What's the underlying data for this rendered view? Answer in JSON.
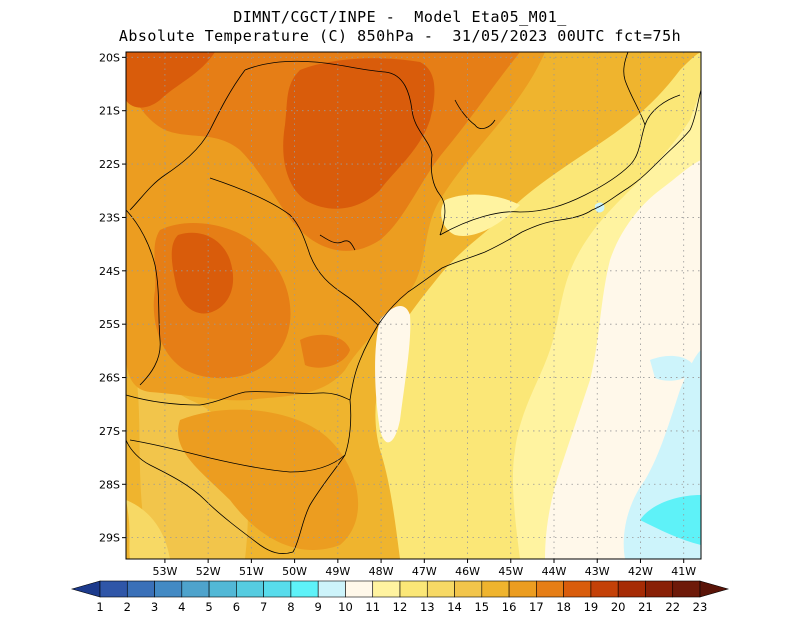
{
  "header": {
    "line1": "DIMNT/CGCT/INPE -  Model Eta05_M01_",
    "line2": "Absolute Temperature (C) 850hPa -  31/05/2023 00UTC fct=75h"
  },
  "map": {
    "lon_range": [
      -53.9,
      -40.6
    ],
    "lat_range": [
      -29.4,
      -19.9
    ],
    "lat_ticks": [
      {
        "value": -20,
        "label": "20S"
      },
      {
        "value": -21,
        "label": "21S"
      },
      {
        "value": -22,
        "label": "22S"
      },
      {
        "value": -23,
        "label": "23S"
      },
      {
        "value": -24,
        "label": "24S"
      },
      {
        "value": -25,
        "label": "25S"
      },
      {
        "value": -26,
        "label": "26S"
      },
      {
        "value": -27,
        "label": "27S"
      },
      {
        "value": -28,
        "label": "28S"
      },
      {
        "value": -29,
        "label": "29S"
      }
    ],
    "lon_ticks": [
      {
        "value": -53,
        "label": "53W"
      },
      {
        "value": -52,
        "label": "52W"
      },
      {
        "value": -51,
        "label": "51W"
      },
      {
        "value": -50,
        "label": "50W"
      },
      {
        "value": -49,
        "label": "49W"
      },
      {
        "value": -48,
        "label": "48W"
      },
      {
        "value": -47,
        "label": "47W"
      },
      {
        "value": -46,
        "label": "46W"
      },
      {
        "value": -45,
        "label": "45W"
      },
      {
        "value": -44,
        "label": "44W"
      },
      {
        "value": -43,
        "label": "43W"
      },
      {
        "value": -42,
        "label": "42W"
      },
      {
        "value": -41,
        "label": "41W"
      }
    ],
    "grid": "dotted"
  },
  "colorbar": {
    "labels": [
      "1",
      "2",
      "3",
      "4",
      "5",
      "6",
      "7",
      "8",
      "9",
      "10",
      "11",
      "12",
      "13",
      "14",
      "15",
      "16",
      "17",
      "18",
      "19",
      "20",
      "21",
      "22",
      "23"
    ],
    "colors": [
      "#1c3a8c",
      "#2f56a8",
      "#3a70b8",
      "#438ac4",
      "#4ea3cc",
      "#52b8d6",
      "#56cce0",
      "#58dcec",
      "#5ef2f8",
      "#cdf4fb",
      "#fff8ea",
      "#fff3a0",
      "#fbe777",
      "#f7d965",
      "#f2c54b",
      "#efb42e",
      "#ec9d20",
      "#e67e16",
      "#d95c0b",
      "#c44108",
      "#a62b05",
      "#892006",
      "#6e1a09",
      "#5a1408"
    ]
  }
}
